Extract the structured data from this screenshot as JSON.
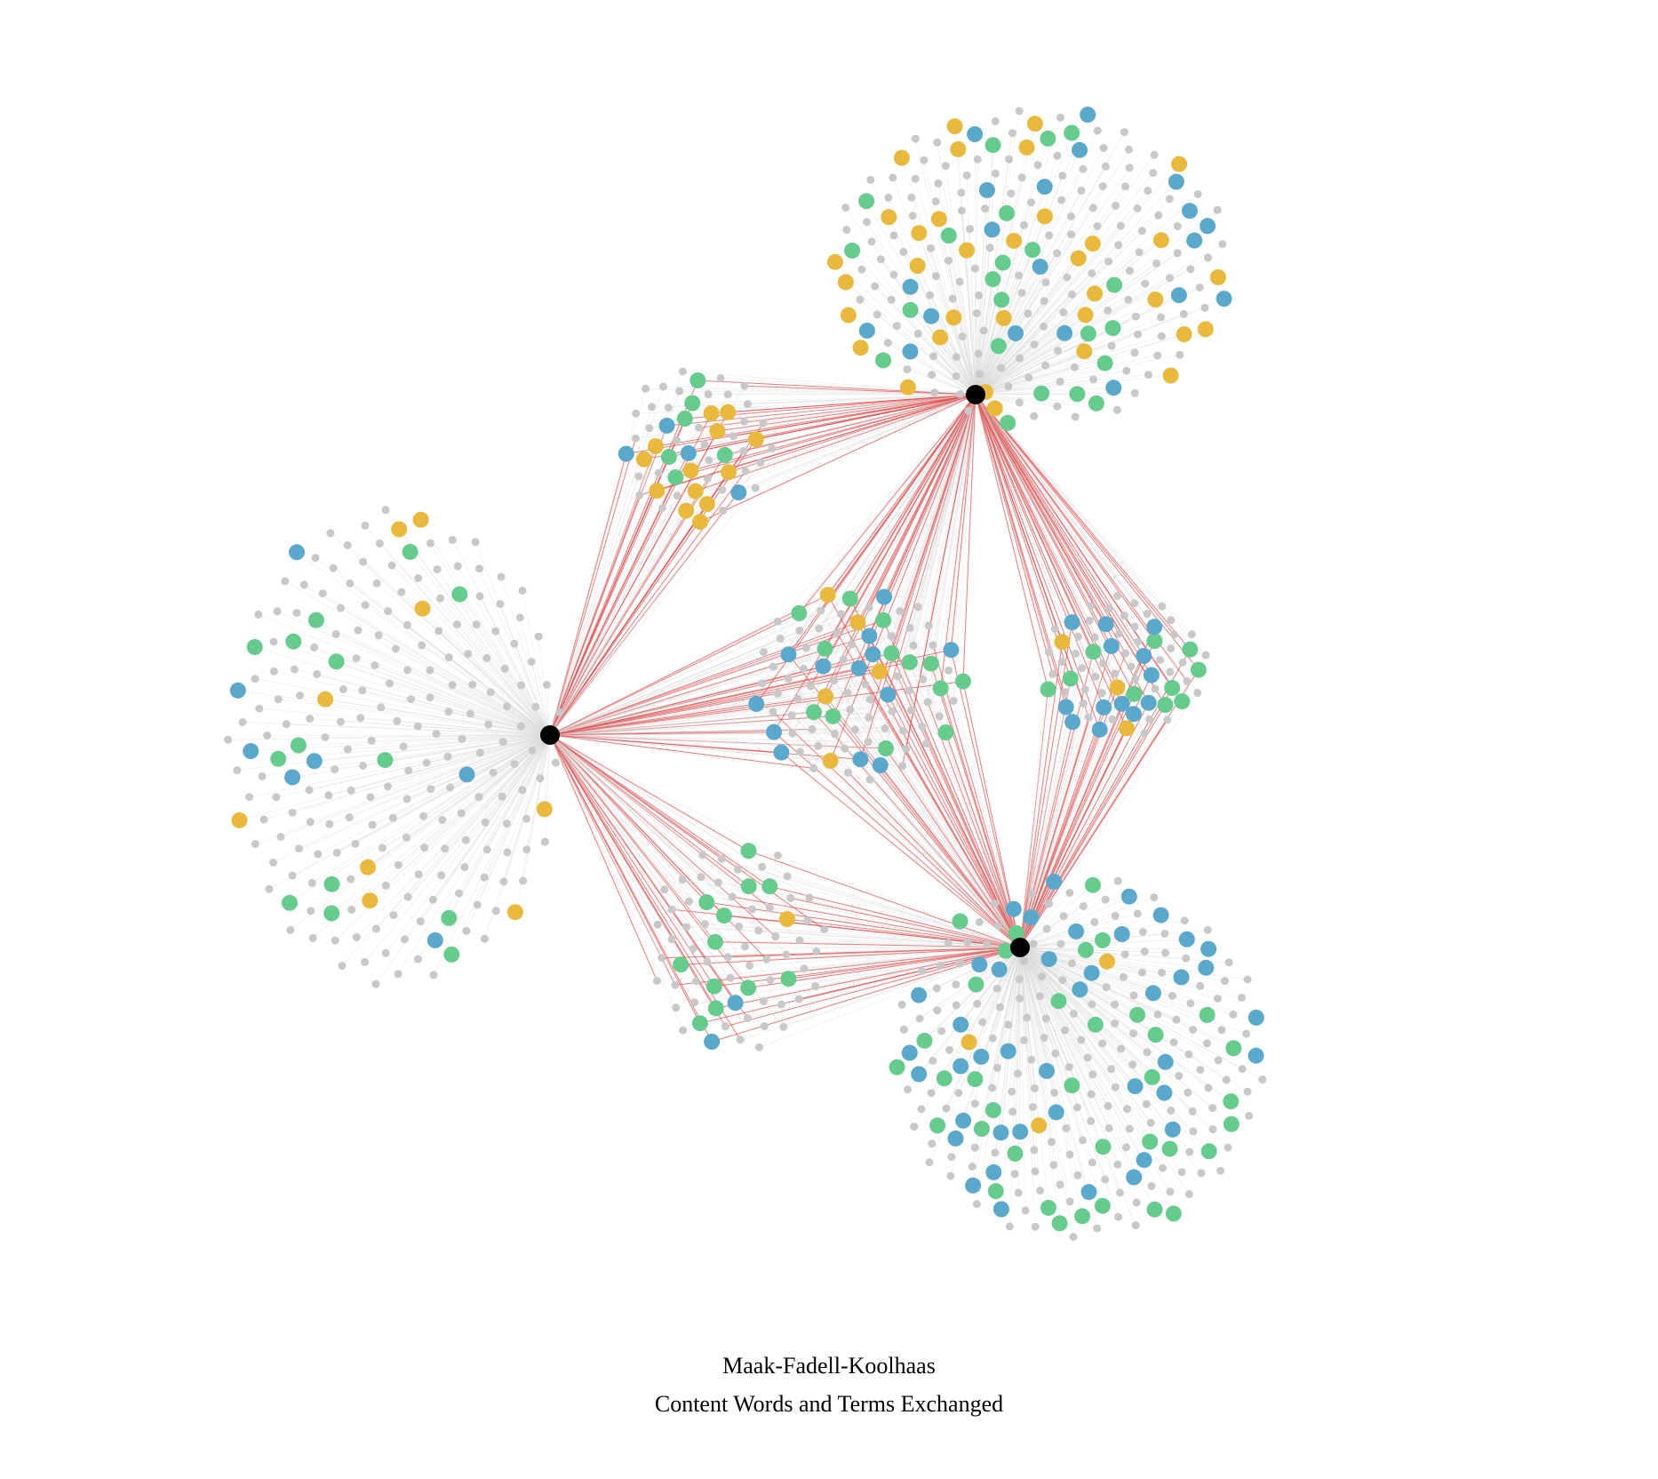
{
  "caption": {
    "title": "Maak-Fadell-Koolhaas",
    "subtitle": "Content Words and Terms Exchanged"
  },
  "colors": {
    "background": "#ffffff",
    "hub": "#000000",
    "word_default": "#c8c8c8",
    "word_yellow": "#e8b93c",
    "word_green": "#66cc8e",
    "word_blue": "#5aa9cc",
    "edge_faint": "#d9d9d9",
    "edge_shared": "#e35050"
  },
  "hubs": [
    {
      "id": "hub-top"
    },
    {
      "id": "hub-left"
    },
    {
      "id": "hub-bottom"
    }
  ],
  "clusters": [
    {
      "id": "top-only",
      "connects": [
        "hub-top"
      ],
      "gray": 150,
      "yellow": 34,
      "green": 22,
      "blue": 20
    },
    {
      "id": "left-only",
      "connects": [
        "hub-left"
      ],
      "gray": 190,
      "yellow": 9,
      "green": 14,
      "blue": 7
    },
    {
      "id": "bottom-only",
      "connects": [
        "hub-bottom"
      ],
      "gray": 180,
      "yellow": 3,
      "green": 36,
      "blue": 42
    },
    {
      "id": "top-left",
      "connects": [
        "hub-top",
        "hub-left"
      ],
      "gray": 34,
      "yellow": 13,
      "green": 6,
      "blue": 4
    },
    {
      "id": "top-bottom",
      "connects": [
        "hub-top",
        "hub-bottom"
      ],
      "gray": 45,
      "yellow": 3,
      "green": 10,
      "blue": 13
    },
    {
      "id": "left-bottom",
      "connects": [
        "hub-left",
        "hub-bottom"
      ],
      "gray": 55,
      "yellow": 1,
      "green": 12,
      "blue": 2
    },
    {
      "id": "all-three",
      "connects": [
        "hub-top",
        "hub-left",
        "hub-bottom"
      ],
      "gray": 60,
      "yellow": 5,
      "green": 13,
      "blue": 13
    }
  ]
}
